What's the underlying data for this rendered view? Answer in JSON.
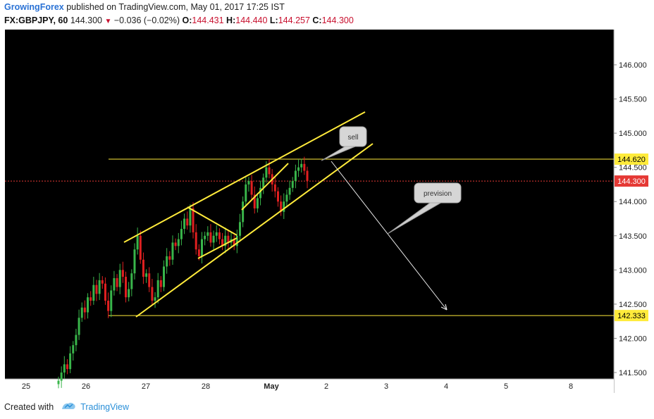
{
  "header": {
    "author": "GrowingForex",
    "published_text": "published on TradingView.com, May 01, 2017 17:25 IST",
    "symbol": "FX:GBPJPY, 60",
    "last": "144.300",
    "change": "−0.036 (−0.02%)",
    "open_label": "O:",
    "open": "144.431",
    "high_label": "H:",
    "high": "144.440",
    "low_label": "L:",
    "low": "144.257",
    "close_label": "C:",
    "close": "144.300"
  },
  "footer": {
    "created_with": "Created with",
    "brand": "TradingView"
  },
  "colors": {
    "background": "#000000",
    "up_candle": "#39b54a",
    "down_candle": "#e02020",
    "drawing": "#ffeb3b",
    "last_price": "#e53935",
    "level_label_bg": "#ffeb3b"
  },
  "chart_data": {
    "type": "candlestick",
    "timeframe": "60",
    "x_ticks": [
      "25",
      "26",
      "27",
      "28",
      "May",
      "2",
      "3",
      "4",
      "5",
      "8"
    ],
    "y_ticks": [
      "141.500",
      "142.000",
      "142.500",
      "143.000",
      "143.500",
      "144.000",
      "144.500",
      "145.000",
      "145.500",
      "146.000"
    ],
    "ylim": [
      141.4,
      146.5
    ],
    "price_levels": [
      {
        "label": "144.620",
        "value": 144.62
      },
      {
        "label": "142.333",
        "value": 142.333
      }
    ],
    "last_price": {
      "label": "144.300",
      "value": 144.3
    },
    "annotations": [
      "sell",
      "prevision"
    ],
    "candles_close": [
      141.38,
      141.5,
      141.62,
      141.55,
      141.78,
      141.9,
      142.05,
      142.3,
      142.45,
      142.38,
      142.6,
      142.55,
      142.78,
      142.65,
      142.85,
      142.8,
      142.55,
      142.4,
      142.7,
      142.88,
      142.75,
      143.0,
      142.9,
      142.6,
      142.72,
      142.95,
      143.3,
      143.5,
      143.15,
      142.9,
      142.95,
      142.75,
      142.55,
      142.6,
      142.85,
      142.75,
      143.05,
      143.2,
      143.15,
      143.4,
      143.35,
      143.45,
      143.6,
      143.75,
      143.65,
      143.9,
      143.55,
      143.3,
      143.2,
      143.45,
      143.5,
      143.55,
      143.4,
      143.5,
      143.55,
      143.45,
      143.35,
      143.5,
      143.4,
      143.45,
      143.35,
      143.5,
      143.7,
      144.0,
      144.25,
      144.3,
      144.1,
      143.9,
      144.05,
      144.2,
      144.35,
      144.5,
      144.4,
      144.25,
      144.15,
      144.0,
      143.85,
      144.0,
      144.1,
      144.2,
      144.3,
      144.45,
      144.5,
      144.55,
      144.45,
      144.3
    ]
  }
}
